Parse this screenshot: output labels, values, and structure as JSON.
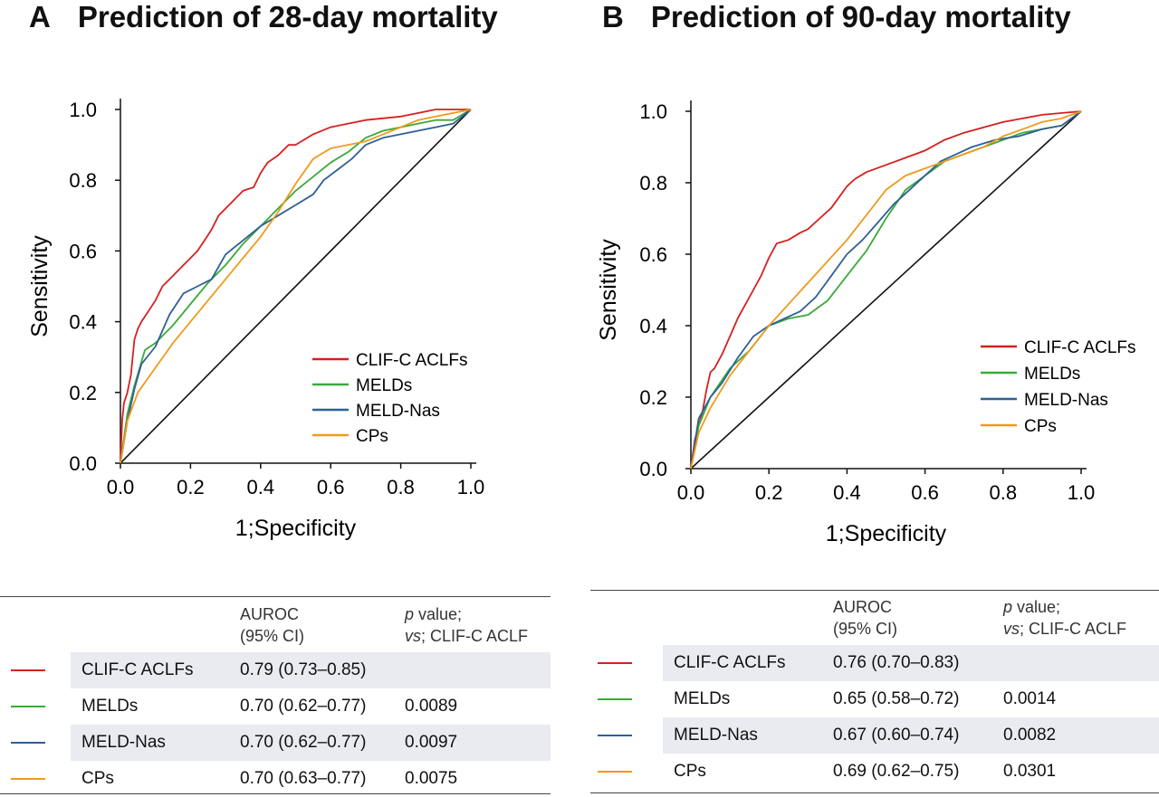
{
  "panels": [
    {
      "letter": "A",
      "title": "Prediction of 28-day mortality",
      "table": {
        "header_auroc": [
          "AUROC",
          "(95% CI)"
        ],
        "header_p": [
          "p",
          " value;"
        ],
        "header_vs": [
          "vs",
          "; CLIF-C ACLF"
        ],
        "rows": [
          {
            "name": "CLIF-C ACLFs",
            "auroc": "0.79 (0.73–0.85)",
            "p": "",
            "color": "#d62020",
            "shade": true
          },
          {
            "name": "MELDs",
            "auroc": "0.70 (0.62–0.77)",
            "p": "0.0089",
            "color": "#3aaa3a",
            "shade": false
          },
          {
            "name": "MELD-Nas",
            "auroc": "0.70 (0.62–0.77)",
            "p": "0.0097",
            "color": "#2f5f97",
            "shade": true
          },
          {
            "name": "CPs",
            "auroc": "0.70 (0.63–0.77)",
            "p": "0.0075",
            "color": "#f09a1c",
            "shade": false
          }
        ]
      }
    },
    {
      "letter": "B",
      "title": "Prediction of 90-day mortality",
      "table": {
        "header_auroc": [
          "AUROC",
          "(95% CI)"
        ],
        "header_p": [
          "p",
          " value;"
        ],
        "header_vs": [
          "vs",
          "; CLIF-C ACLF"
        ],
        "rows": [
          {
            "name": "CLIF-C ACLFs",
            "auroc": "0.76 (0.70–0.83)",
            "p": "",
            "color": "#d62020",
            "shade": true
          },
          {
            "name": "MELDs",
            "auroc": "0.65 (0.58–0.72)",
            "p": "0.0014",
            "color": "#3aaa3a",
            "shade": false
          },
          {
            "name": "MELD-Nas",
            "auroc": "0.67 (0.60–0.74)",
            "p": "0.0082",
            "color": "#2f5f97",
            "shade": true
          },
          {
            "name": "CPs",
            "auroc": "0.69 (0.62–0.75)",
            "p": "0.0301",
            "color": "#f09a1c",
            "shade": false
          }
        ]
      }
    }
  ],
  "chart_data": [
    {
      "type": "line",
      "title": "Prediction of 28-day mortality",
      "xlabel": "1;Specificity",
      "ylabel": "Sensitivity",
      "xlim": [
        0,
        1
      ],
      "ylim": [
        0,
        1
      ],
      "xticks": [
        "0.0",
        "0.2",
        "0.4",
        "0.6",
        "0.8",
        "1.0"
      ],
      "yticks": [
        "0.0",
        "0.2",
        "0.4",
        "0.6",
        "0.8",
        "1.0"
      ],
      "legend_position": "bottom-right",
      "reference_line": {
        "x": [
          0,
          1
        ],
        "y": [
          0,
          1
        ],
        "color": "#111111"
      },
      "series": [
        {
          "name": "CLIF-C ACLFs",
          "color": "#d62020",
          "x": [
            0,
            0.005,
            0.01,
            0.02,
            0.03,
            0.04,
            0.05,
            0.06,
            0.08,
            0.1,
            0.12,
            0.14,
            0.16,
            0.18,
            0.2,
            0.22,
            0.24,
            0.26,
            0.28,
            0.3,
            0.32,
            0.35,
            0.38,
            0.4,
            0.42,
            0.45,
            0.48,
            0.5,
            0.55,
            0.6,
            0.65,
            0.7,
            0.8,
            0.9,
            1.0
          ],
          "y": [
            0,
            0.12,
            0.17,
            0.2,
            0.25,
            0.35,
            0.38,
            0.4,
            0.43,
            0.46,
            0.5,
            0.52,
            0.54,
            0.56,
            0.58,
            0.6,
            0.63,
            0.66,
            0.7,
            0.72,
            0.74,
            0.77,
            0.78,
            0.82,
            0.85,
            0.87,
            0.9,
            0.9,
            0.93,
            0.95,
            0.96,
            0.97,
            0.98,
            1.0,
            1.0
          ]
        },
        {
          "name": "MELDs",
          "color": "#3aaa3a",
          "x": [
            0,
            0.02,
            0.04,
            0.07,
            0.1,
            0.15,
            0.2,
            0.25,
            0.3,
            0.35,
            0.4,
            0.45,
            0.5,
            0.55,
            0.6,
            0.65,
            0.7,
            0.75,
            0.8,
            0.85,
            0.9,
            0.95,
            1.0
          ],
          "y": [
            0,
            0.14,
            0.22,
            0.32,
            0.34,
            0.39,
            0.45,
            0.51,
            0.56,
            0.62,
            0.67,
            0.72,
            0.77,
            0.81,
            0.85,
            0.88,
            0.92,
            0.94,
            0.95,
            0.96,
            0.97,
            0.97,
            1.0
          ]
        },
        {
          "name": "MELD-Nas",
          "color": "#2f5f97",
          "x": [
            0,
            0.02,
            0.04,
            0.06,
            0.1,
            0.14,
            0.18,
            0.22,
            0.26,
            0.3,
            0.35,
            0.4,
            0.45,
            0.5,
            0.55,
            0.58,
            0.62,
            0.66,
            0.7,
            0.75,
            0.8,
            0.85,
            0.9,
            0.95,
            1.0
          ],
          "y": [
            0,
            0.12,
            0.21,
            0.28,
            0.33,
            0.42,
            0.48,
            0.5,
            0.52,
            0.59,
            0.63,
            0.67,
            0.7,
            0.73,
            0.76,
            0.8,
            0.83,
            0.86,
            0.9,
            0.92,
            0.93,
            0.94,
            0.95,
            0.96,
            1.0
          ]
        },
        {
          "name": "CPs",
          "color": "#f09a1c",
          "x": [
            0,
            0.02,
            0.05,
            0.1,
            0.15,
            0.2,
            0.25,
            0.3,
            0.35,
            0.4,
            0.45,
            0.5,
            0.55,
            0.6,
            0.65,
            0.7,
            0.75,
            0.8,
            0.85,
            0.9,
            0.95,
            1.0
          ],
          "y": [
            0,
            0.12,
            0.2,
            0.27,
            0.34,
            0.4,
            0.46,
            0.52,
            0.58,
            0.64,
            0.71,
            0.79,
            0.86,
            0.89,
            0.9,
            0.91,
            0.93,
            0.95,
            0.97,
            0.98,
            0.99,
            1.0
          ]
        }
      ]
    },
    {
      "type": "line",
      "title": "Prediction of 90-day mortality",
      "xlabel": "1;Specificity",
      "ylabel": "Sensitivity",
      "xlim": [
        0,
        1
      ],
      "ylim": [
        0,
        1
      ],
      "xticks": [
        "0.0",
        "0.2",
        "0.4",
        "0.6",
        "0.8",
        "1.0"
      ],
      "yticks": [
        "0.0",
        "0.2",
        "0.4",
        "0.6",
        "0.8",
        "1.0"
      ],
      "legend_position": "bottom-right",
      "reference_line": {
        "x": [
          0,
          1
        ],
        "y": [
          0,
          1
        ],
        "color": "#111111"
      },
      "series": [
        {
          "name": "CLIF-C ACLFs",
          "color": "#d62020",
          "x": [
            0,
            0.01,
            0.02,
            0.03,
            0.04,
            0.05,
            0.06,
            0.08,
            0.1,
            0.12,
            0.14,
            0.16,
            0.18,
            0.2,
            0.22,
            0.25,
            0.28,
            0.3,
            0.33,
            0.36,
            0.38,
            0.4,
            0.42,
            0.45,
            0.5,
            0.55,
            0.6,
            0.65,
            0.7,
            0.8,
            0.9,
            1.0
          ],
          "y": [
            0,
            0.08,
            0.12,
            0.16,
            0.22,
            0.27,
            0.28,
            0.32,
            0.37,
            0.42,
            0.46,
            0.5,
            0.54,
            0.59,
            0.63,
            0.64,
            0.66,
            0.67,
            0.7,
            0.73,
            0.76,
            0.79,
            0.81,
            0.83,
            0.85,
            0.87,
            0.89,
            0.92,
            0.94,
            0.97,
            0.99,
            1.0
          ]
        },
        {
          "name": "MELDs",
          "color": "#3aaa3a",
          "x": [
            0,
            0.02,
            0.05,
            0.1,
            0.15,
            0.2,
            0.25,
            0.3,
            0.35,
            0.4,
            0.45,
            0.5,
            0.55,
            0.6,
            0.65,
            0.7,
            0.75,
            0.8,
            0.85,
            0.9,
            0.95,
            1.0
          ],
          "y": [
            0,
            0.12,
            0.2,
            0.28,
            0.33,
            0.4,
            0.42,
            0.43,
            0.47,
            0.54,
            0.61,
            0.7,
            0.78,
            0.82,
            0.86,
            0.88,
            0.9,
            0.92,
            0.94,
            0.95,
            0.96,
            1.0
          ]
        },
        {
          "name": "MELD-Nas",
          "color": "#2f5f97",
          "x": [
            0,
            0.02,
            0.05,
            0.08,
            0.12,
            0.16,
            0.2,
            0.24,
            0.28,
            0.32,
            0.36,
            0.4,
            0.44,
            0.48,
            0.52,
            0.56,
            0.6,
            0.64,
            0.68,
            0.72,
            0.78,
            0.84,
            0.9,
            0.95,
            1.0
          ],
          "y": [
            0,
            0.14,
            0.2,
            0.24,
            0.31,
            0.37,
            0.4,
            0.42,
            0.44,
            0.48,
            0.54,
            0.6,
            0.64,
            0.69,
            0.74,
            0.78,
            0.82,
            0.86,
            0.88,
            0.9,
            0.92,
            0.93,
            0.95,
            0.96,
            1.0
          ]
        },
        {
          "name": "CPs",
          "color": "#f09a1c",
          "x": [
            0,
            0.02,
            0.05,
            0.1,
            0.15,
            0.2,
            0.25,
            0.3,
            0.35,
            0.4,
            0.45,
            0.5,
            0.55,
            0.6,
            0.65,
            0.7,
            0.75,
            0.8,
            0.85,
            0.9,
            0.95,
            1.0
          ],
          "y": [
            0,
            0.1,
            0.17,
            0.26,
            0.33,
            0.4,
            0.46,
            0.52,
            0.58,
            0.64,
            0.71,
            0.78,
            0.82,
            0.84,
            0.86,
            0.88,
            0.9,
            0.93,
            0.95,
            0.97,
            0.98,
            1.0
          ]
        }
      ]
    }
  ]
}
